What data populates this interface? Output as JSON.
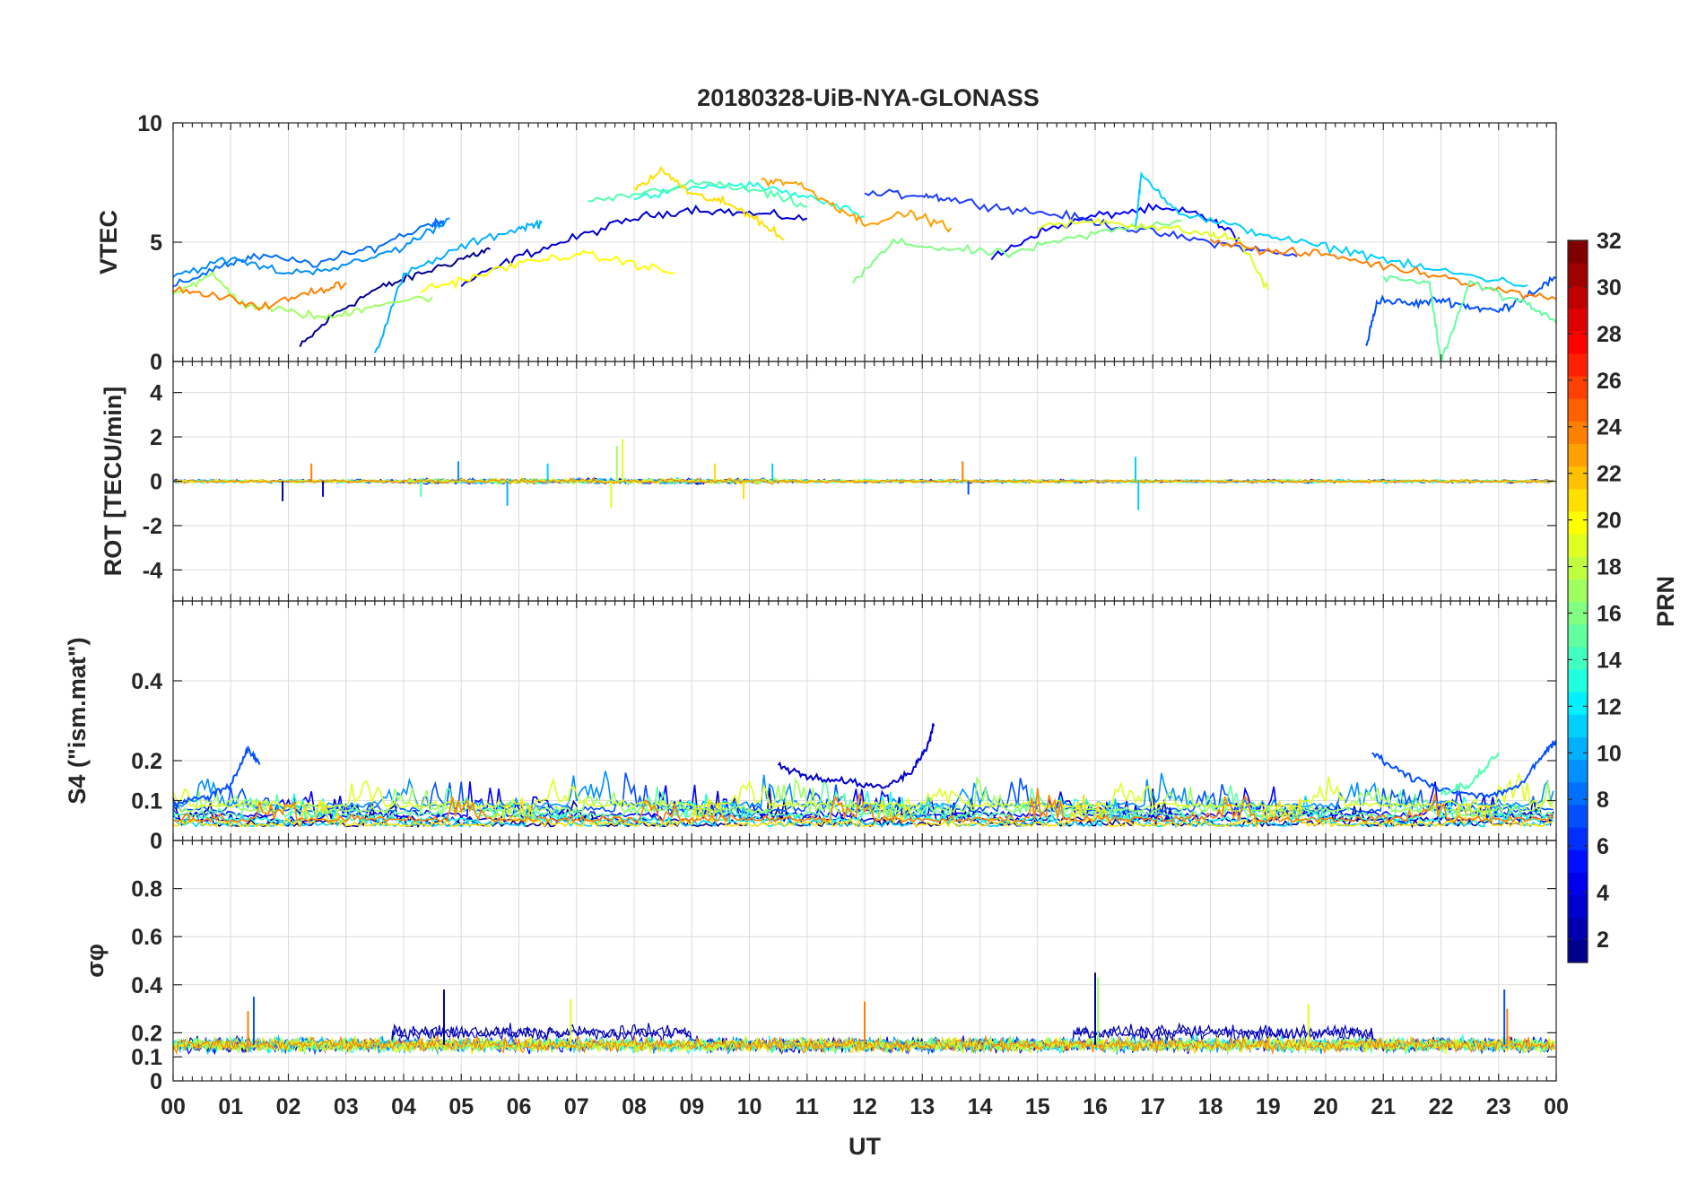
{
  "chart_data": [
    {
      "type": "line",
      "title": "20180328-UiB-NYA-GLONASS",
      "ylabel": "VTEC",
      "xlabel": "",
      "ylim": [
        0,
        10
      ],
      "yticks": [
        0,
        5,
        10
      ],
      "xlim": [
        0,
        24
      ],
      "grid": true,
      "series": [
        {
          "prn": 1,
          "color": "#00008f",
          "x": [
            2.2,
            2.8,
            3.5,
            4.2,
            5.0,
            5.5
          ],
          "y": [
            0.6,
            2.0,
            3.0,
            3.6,
            4.3,
            4.7
          ]
        },
        {
          "prn": 2,
          "color": "#0000cf",
          "x": [
            5.0,
            6.0,
            7.0,
            8.0,
            9.0,
            10.0,
            11.0
          ],
          "y": [
            3.2,
            4.4,
            5.2,
            6.0,
            6.4,
            6.2,
            6.0
          ]
        },
        {
          "prn": 3,
          "color": "#0000ff",
          "x": [
            14.2,
            15.0,
            16.0,
            17.0,
            17.8,
            18.5
          ],
          "y": [
            4.3,
            5.4,
            6.1,
            6.4,
            6.2,
            5.2
          ]
        },
        {
          "prn": 4,
          "color": "#1e3cff",
          "x": [
            12.0,
            13.0,
            13.5,
            14.5,
            15.5,
            16.5,
            17.5,
            18.5,
            19.5
          ],
          "y": [
            7.0,
            7.0,
            6.8,
            6.4,
            6.1,
            5.6,
            5.2,
            4.8,
            4.4
          ]
        },
        {
          "prn": 5,
          "color": "#0050ff",
          "x": [
            20.7,
            20.9,
            21.5,
            22.0,
            22.5,
            23.0,
            23.5,
            24.0
          ],
          "y": [
            0.6,
            2.6,
            2.4,
            2.6,
            2.3,
            2.1,
            2.8,
            3.5
          ]
        },
        {
          "prn": 6,
          "color": "#006eff",
          "x": [
            0.0,
            0.8,
            1.5,
            2.5,
            3.5,
            4.5,
            4.7
          ],
          "y": [
            3.1,
            4.0,
            4.4,
            4.1,
            4.8,
            5.8,
            5.9
          ]
        },
        {
          "prn": 7,
          "color": "#0090ff",
          "x": [
            0.0,
            1.0,
            2.0,
            3.0,
            4.0,
            4.8
          ],
          "y": [
            3.6,
            4.3,
            3.7,
            4.0,
            4.8,
            6.0
          ]
        },
        {
          "prn": 8,
          "color": "#00b0ff",
          "x": [
            3.5,
            4.0,
            5.0,
            6.0,
            6.4
          ],
          "y": [
            0.3,
            3.6,
            4.8,
            5.6,
            5.8
          ]
        },
        {
          "prn": 9,
          "color": "#00d0ff",
          "x": [
            16.7,
            16.8,
            17.5,
            18.5,
            19.5,
            20.5,
            21.5,
            22.5,
            23.5
          ],
          "y": [
            5.6,
            7.8,
            6.2,
            5.6,
            5.0,
            4.6,
            4.0,
            3.6,
            3.2
          ]
        },
        {
          "prn": 10,
          "color": "#20ffdf",
          "x": [
            8.0,
            9.0,
            10.0,
            11.0,
            12.0
          ],
          "y": [
            6.8,
            7.3,
            7.4,
            6.9,
            6.1
          ]
        },
        {
          "prn": 11,
          "color": "#50ffaf",
          "x": [
            7.2,
            8.2,
            9.2,
            10.2,
            11.0
          ],
          "y": [
            6.6,
            7.1,
            7.5,
            7.1,
            6.5
          ]
        },
        {
          "prn": 12,
          "color": "#80ff80",
          "x": [
            11.8,
            12.5,
            13.5,
            14.5,
            15.5,
            16.5,
            17.5
          ],
          "y": [
            3.3,
            5.0,
            4.7,
            4.5,
            5.1,
            5.6,
            5.9
          ]
        },
        {
          "prn": 13,
          "color": "#9fff60",
          "x": [
            0.0,
            0.7,
            1.2,
            2.0,
            2.7,
            3.5,
            4.5
          ],
          "y": [
            2.9,
            3.6,
            2.4,
            2.1,
            1.8,
            2.4,
            2.7
          ]
        },
        {
          "prn": 14,
          "color": "#dfff20",
          "x": [
            15.0,
            16.0,
            16.8,
            17.8,
            18.5,
            19.0
          ],
          "y": [
            5.6,
            5.9,
            5.7,
            5.4,
            5.1,
            3.0
          ]
        },
        {
          "prn": 15,
          "color": "#ffff00",
          "x": [
            4.3,
            5.0,
            6.0,
            7.0,
            7.8,
            8.7
          ],
          "y": [
            3.0,
            3.4,
            4.1,
            4.5,
            4.2,
            3.7
          ]
        },
        {
          "prn": 16,
          "color": "#ffe000",
          "x": [
            8.0,
            8.5,
            9.0,
            9.5,
            10.0,
            10.6
          ],
          "y": [
            7.2,
            8.0,
            7.0,
            6.7,
            6.2,
            5.1
          ]
        },
        {
          "prn": 17,
          "color": "#ffa000",
          "x": [
            10.2,
            10.8,
            11.5,
            12.0,
            12.8,
            13.5
          ],
          "y": [
            7.6,
            7.5,
            6.5,
            5.8,
            6.2,
            5.6
          ]
        },
        {
          "prn": 18,
          "color": "#ff8000",
          "x": [
            0.0,
            0.8,
            1.6,
            2.4,
            3.0
          ],
          "y": [
            3.0,
            2.7,
            2.3,
            2.9,
            3.3
          ]
        },
        {
          "prn": 19,
          "color": "#ff8000",
          "x": [
            18.0,
            19.0,
            20.0,
            21.0,
            22.0,
            23.0,
            24.0
          ],
          "y": [
            5.1,
            4.6,
            4.5,
            4.0,
            3.6,
            3.0,
            2.6
          ]
        },
        {
          "prn": 20,
          "color": "#60ff9f",
          "x": [
            21.0,
            21.8,
            22.0,
            22.5,
            23.5,
            24.0
          ],
          "y": [
            3.6,
            3.3,
            0.0,
            3.3,
            2.4,
            1.6
          ]
        }
      ]
    },
    {
      "type": "line",
      "ylabel": "ROT [TECU/min]",
      "xlabel": "",
      "ylim": [
        -5.4,
        5.4
      ],
      "yticks": [
        -4,
        -2,
        0,
        2,
        4
      ],
      "xlim": [
        0,
        24
      ],
      "grid": true,
      "spikes": [
        {
          "x": 1.9,
          "y": -0.9,
          "color": "#00008f"
        },
        {
          "x": 2.6,
          "y": -0.7,
          "color": "#0000cf"
        },
        {
          "x": 2.4,
          "y": 0.8,
          "color": "#ff8000"
        },
        {
          "x": 4.3,
          "y": -0.7,
          "color": "#50ffaf"
        },
        {
          "x": 4.95,
          "y": 0.9,
          "color": "#0090ff"
        },
        {
          "x": 5.8,
          "y": -1.1,
          "color": "#00b0ff"
        },
        {
          "x": 6.5,
          "y": 0.8,
          "color": "#00d0ff"
        },
        {
          "x": 7.6,
          "y": -1.2,
          "color": "#dfff20"
        },
        {
          "x": 7.8,
          "y": 1.9,
          "color": "#dfff20"
        },
        {
          "x": 7.7,
          "y": 1.6,
          "color": "#9fff60"
        },
        {
          "x": 9.4,
          "y": 0.8,
          "color": "#ffe000"
        },
        {
          "x": 9.9,
          "y": -0.8,
          "color": "#ffe000"
        },
        {
          "x": 10.4,
          "y": 0.8,
          "color": "#00d0ff"
        },
        {
          "x": 13.7,
          "y": 0.9,
          "color": "#ff8000"
        },
        {
          "x": 13.8,
          "y": -0.6,
          "color": "#0050ff"
        },
        {
          "x": 16.7,
          "y": 1.1,
          "color": "#00d0ff"
        },
        {
          "x": 16.75,
          "y": -1.3,
          "color": "#00d0ff"
        }
      ]
    },
    {
      "type": "line",
      "ylabel": "S4 (\"ism.mat\")",
      "xlabel": "",
      "ylim": [
        0,
        0.6
      ],
      "yticks": [
        0,
        0.1,
        0.2,
        0.4
      ],
      "xlim": [
        0,
        24
      ],
      "grid": true,
      "series": [
        {
          "prn": 6,
          "color": "#0050ff",
          "x": [
            0.0,
            0.6,
            1.0,
            1.3,
            1.5
          ],
          "y": [
            0.09,
            0.11,
            0.14,
            0.23,
            0.19
          ]
        },
        {
          "prn": 2,
          "color": "#0000cf",
          "x": [
            10.5,
            11.0,
            11.6,
            12.3,
            12.8,
            13.1,
            13.2
          ],
          "y": [
            0.19,
            0.16,
            0.15,
            0.13,
            0.17,
            0.24,
            0.29
          ]
        },
        {
          "prn": 5,
          "color": "#0050ff",
          "x": [
            20.8,
            21.3,
            22.0,
            22.8,
            23.4,
            23.8,
            24.0
          ],
          "y": [
            0.22,
            0.17,
            0.13,
            0.11,
            0.14,
            0.22,
            0.25
          ]
        },
        {
          "prn": 12,
          "color": "#50ffaf",
          "x": [
            22.0,
            22.5,
            23.0
          ],
          "y": [
            0.12,
            0.14,
            0.22
          ]
        }
      ]
    },
    {
      "type": "line",
      "ylabel": "σφ",
      "xlabel": "UT",
      "ylim": [
        0,
        1
      ],
      "yticks": [
        0,
        0.1,
        0.2,
        0.4,
        0.6,
        0.8
      ],
      "xlim": [
        0,
        24
      ],
      "xticklabels": [
        "00",
        "01",
        "02",
        "03",
        "04",
        "05",
        "06",
        "07",
        "08",
        "09",
        "10",
        "11",
        "12",
        "13",
        "14",
        "15",
        "16",
        "17",
        "18",
        "19",
        "20",
        "21",
        "22",
        "23",
        "00"
      ],
      "grid": true,
      "spikes": [
        {
          "x": 1.4,
          "y": 0.35,
          "color": "#0050ff"
        },
        {
          "x": 1.3,
          "y": 0.29,
          "color": "#ff8000"
        },
        {
          "x": 4.7,
          "y": 0.38,
          "color": "#00008f"
        },
        {
          "x": 6.9,
          "y": 0.34,
          "color": "#dfff20"
        },
        {
          "x": 12.0,
          "y": 0.33,
          "color": "#ff8000"
        },
        {
          "x": 16.0,
          "y": 0.45,
          "color": "#00008f"
        },
        {
          "x": 16.05,
          "y": 0.43,
          "color": "#9fff60"
        },
        {
          "x": 19.7,
          "y": 0.32,
          "color": "#dfff20"
        },
        {
          "x": 23.1,
          "y": 0.38,
          "color": "#0050ff"
        },
        {
          "x": 23.15,
          "y": 0.3,
          "color": "#ff8000"
        }
      ]
    }
  ],
  "colorbar": {
    "label": "PRN",
    "range": [
      1,
      32
    ],
    "ticks": [
      2,
      4,
      6,
      8,
      10,
      12,
      14,
      16,
      18,
      20,
      22,
      24,
      26,
      28,
      30,
      32
    ],
    "colormap": "jet"
  }
}
